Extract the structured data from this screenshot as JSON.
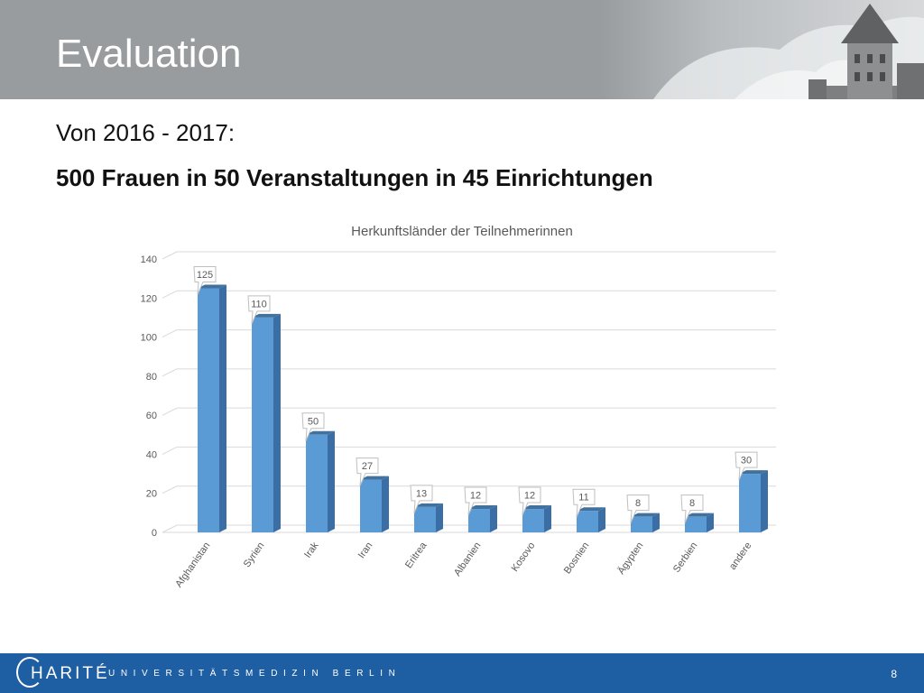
{
  "slide": {
    "title": "Evaluation",
    "subtitle_line1": "Von 2016 - 2017:",
    "subtitle_line2": "500 Frauen in 50 Veranstaltungen in 45 Einrichtungen"
  },
  "footer": {
    "logo_text": "HARITÉ",
    "tagline": "UNIVERSITÄTSMEDIZIN BERLIN",
    "page_number": "8"
  },
  "colors": {
    "header_gray": "#999c9f",
    "footer_blue": "#1e5ea3",
    "bar_front": "#5b9bd5",
    "bar_side": "#3b6ea5",
    "bar_top": "#41719c"
  },
  "chart_data": {
    "type": "bar",
    "title": "Herkunftsländer der Teilnehmerinnen",
    "xlabel": "",
    "ylabel": "",
    "ylim": [
      0,
      140
    ],
    "yticks": [
      0,
      20,
      40,
      60,
      80,
      100,
      120,
      140
    ],
    "grid": true,
    "legend": "none",
    "categories": [
      "Afghanistan",
      "Syrien",
      "Irak",
      "Iran",
      "Eritrea",
      "Albanien",
      "Kosovo",
      "Bosnien",
      "Ägypten",
      "Serbien",
      "andere"
    ],
    "values": [
      125,
      110,
      50,
      27,
      13,
      12,
      12,
      11,
      8,
      8,
      30
    ]
  }
}
